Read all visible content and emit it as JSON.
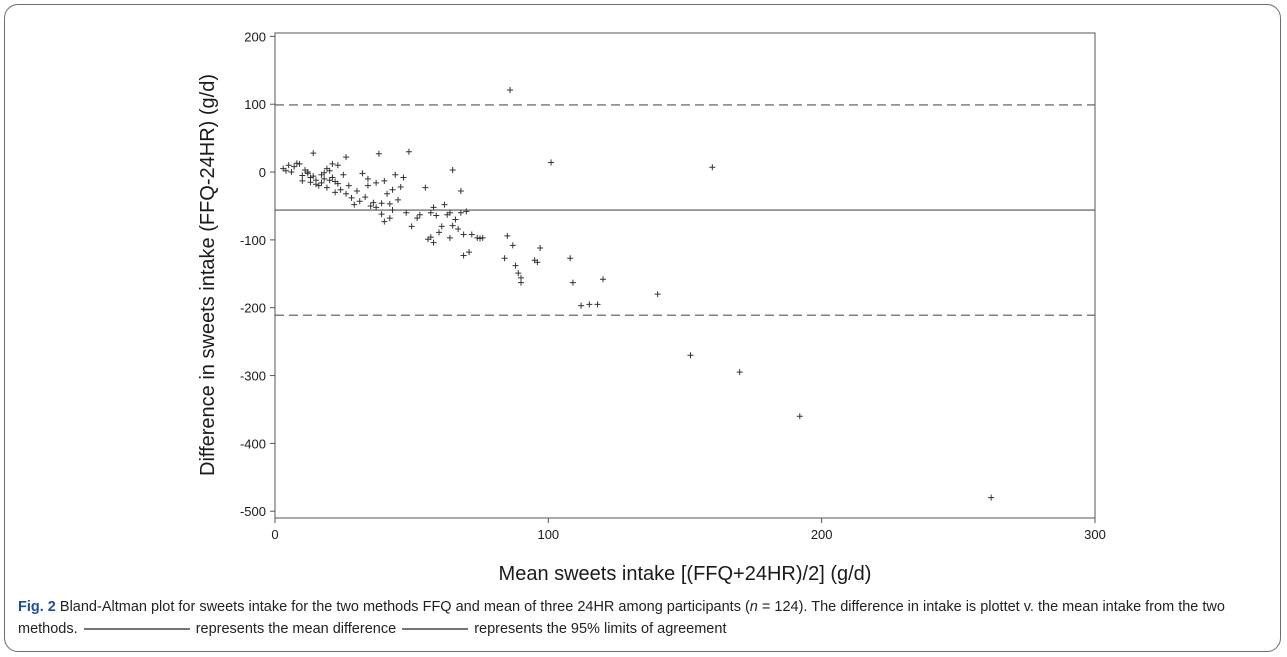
{
  "chart_data": {
    "type": "scatter",
    "xlabel": "Mean sweets intake [(FFQ+24HR)/2] (g/d)",
    "ylabel": "Difference in sweets intake (FFQ-24HR) (g/d)",
    "xlim": [
      0,
      300
    ],
    "ylim": [
      -510,
      205
    ],
    "x_ticks": [
      "0",
      "100",
      "200",
      "300"
    ],
    "y_ticks": [
      "200",
      "100",
      "0",
      "-100",
      "-200",
      "-300",
      "-400",
      "-500"
    ],
    "reference_lines": [
      {
        "value": -56,
        "style": "solid"
      },
      {
        "value": 99,
        "style": "dashed"
      },
      {
        "value": -211,
        "style": "dashed"
      }
    ],
    "marker": "plus",
    "points": [
      [
        3,
        5
      ],
      [
        4,
        2
      ],
      [
        5,
        10
      ],
      [
        6,
        0
      ],
      [
        7,
        8
      ],
      [
        8,
        13
      ],
      [
        9,
        12
      ],
      [
        10,
        -5
      ],
      [
        10,
        -13
      ],
      [
        11,
        3
      ],
      [
        12,
        -2
      ],
      [
        12,
        0
      ],
      [
        13,
        -8
      ],
      [
        13,
        -15
      ],
      [
        14,
        28
      ],
      [
        14,
        -6
      ],
      [
        15,
        -18
      ],
      [
        15,
        -12
      ],
      [
        16,
        -20
      ],
      [
        17,
        -4
      ],
      [
        17,
        -16
      ],
      [
        18,
        -1
      ],
      [
        18,
        -10
      ],
      [
        19,
        5
      ],
      [
        19,
        -23
      ],
      [
        20,
        2
      ],
      [
        20,
        -12
      ],
      [
        21,
        12
      ],
      [
        21,
        -8
      ],
      [
        22,
        -14
      ],
      [
        22,
        -30
      ],
      [
        23,
        10
      ],
      [
        23,
        -17
      ],
      [
        24,
        -26
      ],
      [
        25,
        -4
      ],
      [
        26,
        22
      ],
      [
        26,
        -32
      ],
      [
        27,
        -20
      ],
      [
        28,
        -38
      ],
      [
        29,
        -48
      ],
      [
        30,
        -28
      ],
      [
        31,
        -43
      ],
      [
        32,
        -2
      ],
      [
        33,
        -37
      ],
      [
        34,
        -10
      ],
      [
        34,
        -20
      ],
      [
        35,
        -50
      ],
      [
        36,
        -45
      ],
      [
        37,
        -16
      ],
      [
        37,
        -52
      ],
      [
        38,
        27
      ],
      [
        39,
        -46
      ],
      [
        39,
        -62
      ],
      [
        40,
        -13
      ],
      [
        40,
        -73
      ],
      [
        41,
        -32
      ],
      [
        42,
        -68
      ],
      [
        42,
        -47
      ],
      [
        43,
        -26
      ],
      [
        43,
        -56
      ],
      [
        44,
        -4
      ],
      [
        45,
        -41
      ],
      [
        46,
        -22
      ],
      [
        47,
        -8
      ],
      [
        48,
        -60
      ],
      [
        49,
        30
      ],
      [
        50,
        -80
      ],
      [
        52,
        -68
      ],
      [
        53,
        -63
      ],
      [
        55,
        -23
      ],
      [
        56,
        -99
      ],
      [
        57,
        -96
      ],
      [
        57,
        -60
      ],
      [
        58,
        -104
      ],
      [
        58,
        -52
      ],
      [
        59,
        -64
      ],
      [
        60,
        -89
      ],
      [
        61,
        -80
      ],
      [
        62,
        -48
      ],
      [
        63,
        -63
      ],
      [
        64,
        -97
      ],
      [
        64,
        -60
      ],
      [
        65,
        3
      ],
      [
        65,
        -79
      ],
      [
        66,
        -70
      ],
      [
        67,
        -84
      ],
      [
        68,
        -28
      ],
      [
        68,
        -60
      ],
      [
        69,
        -123
      ],
      [
        69,
        -92
      ],
      [
        70,
        -58
      ],
      [
        71,
        -118
      ],
      [
        72,
        -92
      ],
      [
        74,
        -97
      ],
      [
        75,
        -98
      ],
      [
        76,
        -97
      ],
      [
        84,
        -127
      ],
      [
        85,
        -94
      ],
      [
        86,
        121
      ],
      [
        87,
        -108
      ],
      [
        88,
        -138
      ],
      [
        89,
        -149
      ],
      [
        90,
        -156
      ],
      [
        90,
        -163
      ],
      [
        95,
        -130
      ],
      [
        96,
        -133
      ],
      [
        97,
        -112
      ],
      [
        101,
        14
      ],
      [
        108,
        -127
      ],
      [
        109,
        -163
      ],
      [
        112,
        -197
      ],
      [
        115,
        -195
      ],
      [
        118,
        -195
      ],
      [
        120,
        -158
      ],
      [
        140,
        -180
      ],
      [
        152,
        -270
      ],
      [
        160,
        7
      ],
      [
        170,
        -295
      ],
      [
        192,
        -360
      ],
      [
        262,
        -480
      ]
    ]
  },
  "caption": {
    "fig_label": "Fig. 2",
    "text_1": "Bland-Altman plot for sweets intake for the two methods FFQ and mean of three 24HR among participants (",
    "n_symbol": "n",
    "text_2": " = 124). The difference in intake is plottet v. the mean intake from the two methods. ",
    "solid_legend": "represents the mean difference",
    "dashed_legend": "represents the 95% limits of agreement"
  }
}
